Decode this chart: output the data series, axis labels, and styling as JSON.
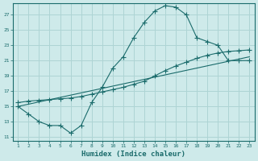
{
  "xlabel": "Humidex (Indice chaleur)",
  "bg_color": "#ceeaea",
  "line_color": "#1a6b6b",
  "grid_color": "#aed4d4",
  "x_ticks": [
    1,
    2,
    3,
    4,
    5,
    6,
    7,
    8,
    9,
    10,
    11,
    12,
    13,
    14,
    15,
    16,
    17,
    18,
    19,
    20,
    21,
    22,
    23
  ],
  "y_ticks": [
    11,
    13,
    15,
    17,
    19,
    21,
    23,
    25,
    27
  ],
  "xlim": [
    0.5,
    23.5
  ],
  "ylim": [
    10.5,
    28.5
  ],
  "curve1_x": [
    1,
    2,
    3,
    4,
    5,
    6,
    7,
    8,
    9,
    10,
    11,
    12,
    13,
    14,
    15,
    16,
    17,
    18,
    19,
    20,
    21,
    22,
    23
  ],
  "curve1_y": [
    15,
    14,
    13,
    12.5,
    12.5,
    11.5,
    12.5,
    15.5,
    17.5,
    20,
    21.5,
    24,
    26,
    27.5,
    28.2,
    28,
    27,
    24,
    23.5,
    23,
    21,
    21,
    21
  ],
  "curve2_x": [
    1,
    2,
    3,
    4,
    5,
    6,
    7,
    8,
    9,
    10,
    11,
    12,
    13,
    14,
    15,
    16,
    17,
    18,
    19,
    20,
    21,
    22,
    23
  ],
  "curve2_y": [
    15.5,
    15.7,
    15.8,
    15.9,
    16.0,
    16.1,
    16.3,
    16.6,
    16.9,
    17.2,
    17.5,
    17.9,
    18.3,
    19.0,
    19.7,
    20.3,
    20.8,
    21.3,
    21.7,
    22.0,
    22.2,
    22.3,
    22.4
  ],
  "curve3_x": [
    1,
    23
  ],
  "curve3_y": [
    15,
    21.5
  ],
  "markersize": 3
}
